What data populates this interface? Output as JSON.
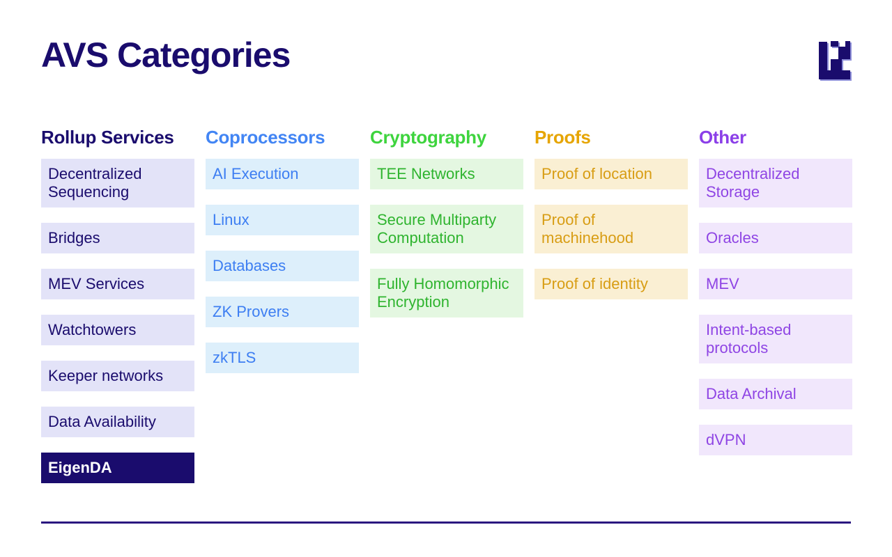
{
  "page": {
    "title": "AVS Categories",
    "background": "#ffffff",
    "navy": "#1a0c6d",
    "divider_color": "#2a1680"
  },
  "logo": {
    "name": "EigenLayer logo",
    "color": "#1a0c6d",
    "shadow_color": "#8d8ed8"
  },
  "columns": [
    {
      "id": "rollup-services",
      "label": "Rollup Services",
      "accent": "#1a0c6d",
      "item_bg": "#e3e3f8",
      "item_text": "#1a0c6d",
      "items": [
        {
          "label": "Decentralized Sequencing"
        },
        {
          "label": "Bridges"
        },
        {
          "label": "MEV Services"
        },
        {
          "label": "Watchtowers"
        },
        {
          "label": "Keeper networks"
        },
        {
          "label": "Data Availability"
        },
        {
          "label": "EigenDA",
          "highlighted": true,
          "highlight_bg": "#1a0c6d",
          "highlight_text": "#ffffff"
        }
      ]
    },
    {
      "id": "coprocessors",
      "label": "Coprocessors",
      "accent": "#4285f4",
      "item_bg": "#ddeffb",
      "item_text": "#3d7ef2",
      "items": [
        {
          "label": "AI Execution"
        },
        {
          "label": "Linux"
        },
        {
          "label": "Databases"
        },
        {
          "label": "ZK Provers"
        },
        {
          "label": "zkTLS"
        }
      ]
    },
    {
      "id": "cryptography",
      "label": "Cryptography",
      "accent": "#3ed43e",
      "item_bg": "#e4f7e1",
      "item_text": "#2fb42f",
      "items": [
        {
          "label": "TEE Networks"
        },
        {
          "label": "Secure Multiparty Computation"
        },
        {
          "label": "Fully Homomorphic Encryption"
        }
      ]
    },
    {
      "id": "proofs",
      "label": "Proofs",
      "accent": "#e6a503",
      "item_bg": "#faefd3",
      "item_text": "#d89d14",
      "items": [
        {
          "label": "Proof of location"
        },
        {
          "label": "Proof of machinehood"
        },
        {
          "label": "Proof of identity"
        }
      ]
    },
    {
      "id": "other",
      "label": "Other",
      "accent": "#8b3fe8",
      "item_bg": "#f1e7fc",
      "item_text": "#8f45e4",
      "items": [
        {
          "label": "Decentralized Storage"
        },
        {
          "label": "Oracles"
        },
        {
          "label": "MEV"
        },
        {
          "label": "Intent-based protocols"
        },
        {
          "label": "Data Archival"
        },
        {
          "label": "dVPN"
        }
      ]
    }
  ]
}
